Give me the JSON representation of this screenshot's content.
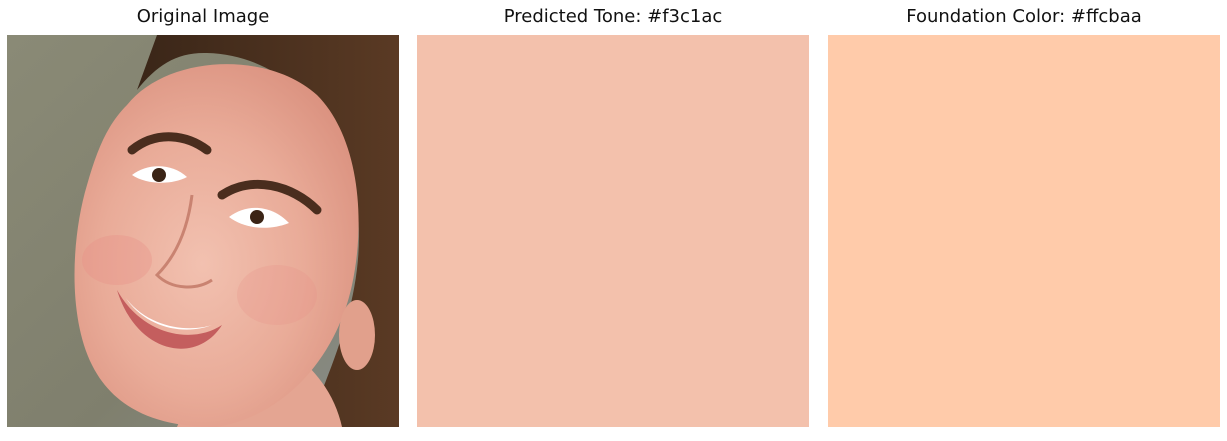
{
  "panels": [
    {
      "title": "Original Image",
      "type": "photo"
    },
    {
      "title": "Predicted Tone: #f3c1ac",
      "type": "swatch",
      "color": "#f3c1ac"
    },
    {
      "title": "Foundation Color: #ffcbaa",
      "type": "swatch",
      "color": "#ffcbaa"
    }
  ]
}
